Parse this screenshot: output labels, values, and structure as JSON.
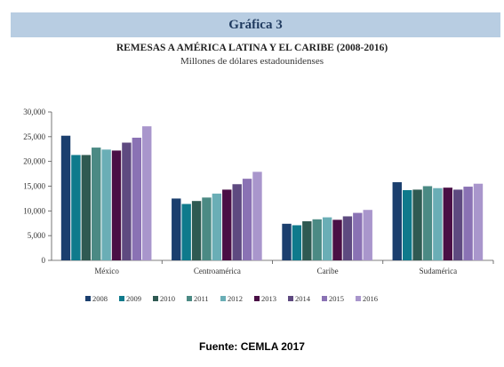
{
  "header": {
    "label": "Gráfica 3"
  },
  "chart_data": {
    "type": "bar",
    "title": "REMESAS A AMÉRICA LATINA Y EL CARIBE (2008-2016)",
    "subtitle": "Millones de dólares estadounidenses",
    "xlabel": "",
    "ylabel": "",
    "ylim": [
      0,
      30000
    ],
    "y_ticks": [
      "0",
      "5,000",
      "10,000",
      "15,000",
      "20,000",
      "25,000",
      "30,000"
    ],
    "grid": false,
    "legend_position": "bottom",
    "categories": [
      "México",
      "Centroamérica",
      "Caribe",
      "Sudamérica"
    ],
    "series": [
      {
        "name": "2008",
        "color": "#1b3f6e",
        "values": [
          25200,
          12500,
          7400,
          15800
        ]
      },
      {
        "name": "2009",
        "color": "#0f7a8c",
        "values": [
          21300,
          11400,
          7100,
          14200
        ]
      },
      {
        "name": "2010",
        "color": "#2f5a52",
        "values": [
          21300,
          12000,
          7900,
          14300
        ]
      },
      {
        "name": "2011",
        "color": "#4b8a84",
        "values": [
          22800,
          12700,
          8300,
          15000
        ]
      },
      {
        "name": "2012",
        "color": "#6aaeb6",
        "values": [
          22400,
          13500,
          8700,
          14600
        ]
      },
      {
        "name": "2013",
        "color": "#4a0f45",
        "values": [
          22200,
          14300,
          8200,
          14700
        ]
      },
      {
        "name": "2014",
        "color": "#5e4a80",
        "values": [
          23800,
          15400,
          8900,
          14300
        ]
      },
      {
        "name": "2015",
        "color": "#8a72b4",
        "values": [
          24800,
          16500,
          9600,
          14900
        ]
      },
      {
        "name": "2016",
        "color": "#a996cc",
        "values": [
          27100,
          17900,
          10200,
          15500
        ]
      }
    ]
  },
  "source": {
    "label": "Fuente: CEMLA 2017"
  }
}
